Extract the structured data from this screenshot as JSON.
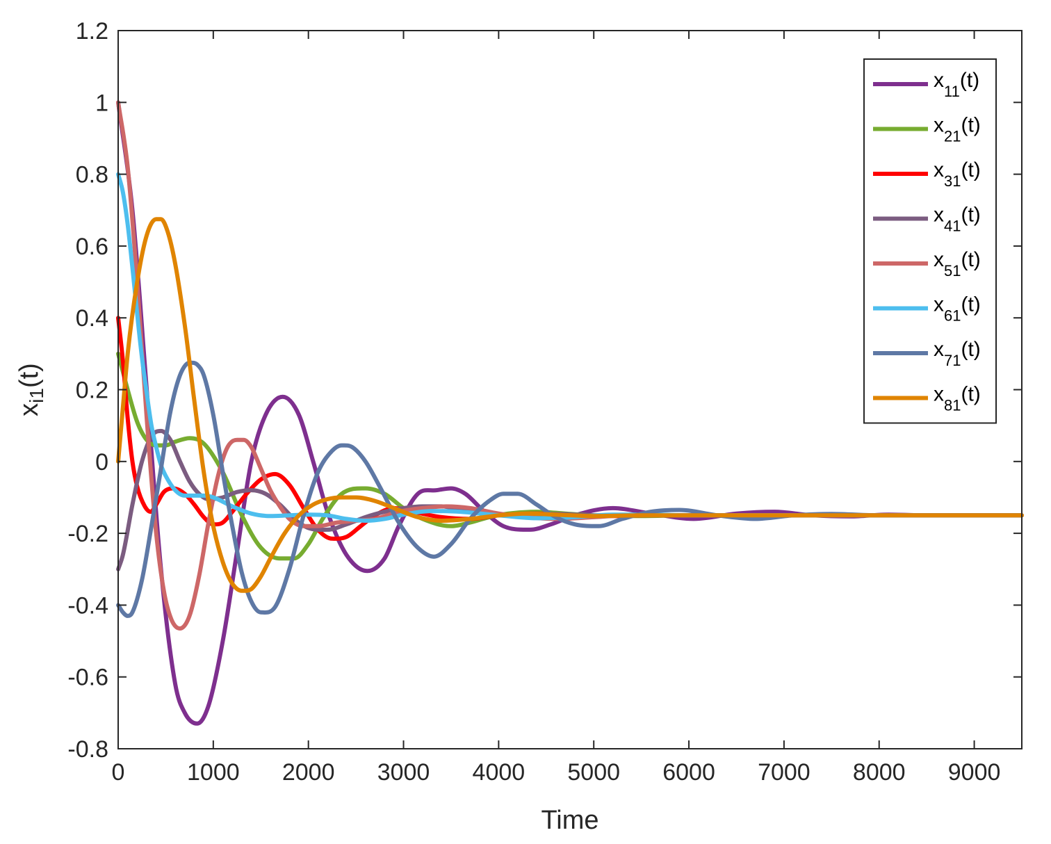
{
  "chart_data": {
    "type": "line",
    "xlabel": "Time",
    "ylabel": {
      "main": "x",
      "sub": "i1",
      "suffix": "(t)"
    },
    "xlim": [
      0,
      9500
    ],
    "ylim": [
      -0.8,
      1.2
    ],
    "xticks": [
      0,
      1000,
      2000,
      3000,
      4000,
      5000,
      6000,
      7000,
      8000,
      9000
    ],
    "xtick_labels": [
      "0",
      "1000",
      "2000",
      "3000",
      "4000",
      "5000",
      "6000",
      "7000",
      "8000",
      "9000"
    ],
    "yticks": [
      -0.8,
      -0.6,
      -0.4,
      -0.2,
      0,
      0.2,
      0.4,
      0.6,
      0.8,
      1,
      1.2
    ],
    "ytick_labels": [
      "-0.8",
      "-0.6",
      "-0.4",
      "-0.2",
      "0",
      "0.2",
      "0.4",
      "0.6",
      "0.8",
      "1",
      "1.2"
    ],
    "grid": false,
    "legend_position": "top-right",
    "series": [
      {
        "name": "x11(t)",
        "label_main": "x",
        "label_sub": "11",
        "label_suffix": "(t)",
        "color": "#7E2F8E",
        "x": [
          0,
          150,
          300,
          450,
          600,
          700,
          830,
          950,
          1100,
          1250,
          1400,
          1550,
          1730,
          1900,
          2050,
          2200,
          2400,
          2620,
          2800,
          2950,
          3150,
          3350,
          3500,
          3650,
          3850,
          4050,
          4330,
          4550,
          4800,
          5200,
          5600,
          6050,
          6500,
          6900,
          7300,
          7700,
          8100,
          8500,
          9000,
          9500
        ],
        "y": [
          1.0,
          0.7,
          0.2,
          -0.3,
          -0.62,
          -0.7,
          -0.73,
          -0.68,
          -0.5,
          -0.25,
          0.0,
          0.13,
          0.18,
          0.13,
          0.0,
          -0.14,
          -0.26,
          -0.305,
          -0.27,
          -0.18,
          -0.09,
          -0.08,
          -0.075,
          -0.09,
          -0.14,
          -0.18,
          -0.19,
          -0.175,
          -0.15,
          -0.13,
          -0.145,
          -0.16,
          -0.145,
          -0.14,
          -0.15,
          -0.153,
          -0.148,
          -0.15,
          -0.15,
          -0.15
        ]
      },
      {
        "name": "x21(t)",
        "label_main": "x",
        "label_sub": "21",
        "label_suffix": "(t)",
        "color": "#77AC30",
        "x": [
          0,
          100,
          200,
          300,
          400,
          500,
          600,
          750,
          900,
          1100,
          1300,
          1500,
          1700,
          1850,
          2000,
          2150,
          2350,
          2600,
          2800,
          3000,
          3200,
          3500,
          3700,
          3900,
          4100,
          4400,
          4700,
          5000,
          5500,
          6000,
          6500,
          7000,
          7500,
          8000,
          8500,
          9000,
          9500
        ],
        "y": [
          0.3,
          0.2,
          0.11,
          0.06,
          0.045,
          0.045,
          0.055,
          0.065,
          0.05,
          -0.03,
          -0.15,
          -0.24,
          -0.27,
          -0.27,
          -0.23,
          -0.16,
          -0.09,
          -0.075,
          -0.09,
          -0.13,
          -0.16,
          -0.18,
          -0.17,
          -0.155,
          -0.145,
          -0.14,
          -0.145,
          -0.15,
          -0.152,
          -0.15,
          -0.15,
          -0.15,
          -0.15,
          -0.15,
          -0.15,
          -0.15,
          -0.15
        ]
      },
      {
        "name": "x31(t)",
        "label_main": "x",
        "label_sub": "31",
        "label_suffix": "(t)",
        "color": "#FF0000",
        "x": [
          0,
          50,
          100,
          150,
          200,
          280,
          340,
          400,
          480,
          580,
          700,
          800,
          900,
          1000,
          1100,
          1200,
          1350,
          1500,
          1650,
          1800,
          1950,
          2100,
          2250,
          2400,
          2550,
          2700,
          2900,
          3100,
          3400,
          3700,
          4000,
          4400,
          4800,
          5200,
          5600,
          6000,
          6500,
          7000,
          7500,
          8000,
          8500,
          9000,
          9500
        ],
        "y": [
          0.4,
          0.28,
          0.12,
          0.0,
          -0.07,
          -0.125,
          -0.14,
          -0.12,
          -0.085,
          -0.075,
          -0.09,
          -0.12,
          -0.155,
          -0.175,
          -0.17,
          -0.14,
          -0.09,
          -0.05,
          -0.035,
          -0.065,
          -0.13,
          -0.19,
          -0.215,
          -0.21,
          -0.18,
          -0.15,
          -0.13,
          -0.14,
          -0.155,
          -0.16,
          -0.15,
          -0.145,
          -0.15,
          -0.152,
          -0.15,
          -0.15,
          -0.15,
          -0.15,
          -0.15,
          -0.15,
          -0.15,
          -0.15,
          -0.15
        ]
      },
      {
        "name": "x41(t)",
        "label_main": "x",
        "label_sub": "41",
        "label_suffix": "(t)",
        "color": "#7B5C80",
        "x": [
          0,
          50,
          150,
          250,
          350,
          450,
          550,
          650,
          750,
          850,
          950,
          1100,
          1250,
          1400,
          1550,
          1700,
          1850,
          2000,
          2200,
          2400,
          2600,
          2800,
          3000,
          3200,
          3400,
          3600,
          3800,
          4000,
          4300,
          4600,
          5000,
          5500,
          6000,
          6500,
          7000,
          7500,
          8000,
          8500,
          9000,
          9500
        ],
        "y": [
          -0.3,
          -0.26,
          -0.12,
          0.0,
          0.07,
          0.085,
          0.06,
          0.0,
          -0.055,
          -0.09,
          -0.105,
          -0.1,
          -0.085,
          -0.08,
          -0.09,
          -0.12,
          -0.16,
          -0.185,
          -0.19,
          -0.175,
          -0.155,
          -0.14,
          -0.13,
          -0.125,
          -0.125,
          -0.135,
          -0.145,
          -0.15,
          -0.148,
          -0.146,
          -0.15,
          -0.15,
          -0.15,
          -0.15,
          -0.15,
          -0.15,
          -0.15,
          -0.15,
          -0.15,
          -0.15
        ]
      },
      {
        "name": "x51(t)",
        "label_main": "x",
        "label_sub": "51",
        "label_suffix": "(t)",
        "color": "#CD6767",
        "x": [
          0,
          100,
          200,
          300,
          400,
          480,
          560,
          650,
          750,
          850,
          950,
          1050,
          1150,
          1250,
          1320,
          1400,
          1500,
          1600,
          1700,
          1800,
          1950,
          2100,
          2300,
          2500,
          2700,
          2950,
          3200,
          3450,
          3700,
          4000,
          4300,
          4600,
          5000,
          5500,
          6000,
          6500,
          7000,
          7500,
          8000,
          8500,
          9000,
          9500
        ],
        "y": [
          1.0,
          0.82,
          0.5,
          0.12,
          -0.2,
          -0.36,
          -0.44,
          -0.465,
          -0.43,
          -0.32,
          -0.17,
          -0.04,
          0.04,
          0.06,
          0.06,
          0.04,
          -0.02,
          -0.08,
          -0.125,
          -0.16,
          -0.18,
          -0.18,
          -0.17,
          -0.165,
          -0.16,
          -0.14,
          -0.13,
          -0.125,
          -0.13,
          -0.145,
          -0.155,
          -0.16,
          -0.155,
          -0.148,
          -0.15,
          -0.15,
          -0.15,
          -0.15,
          -0.15,
          -0.15,
          -0.15,
          -0.15
        ]
      },
      {
        "name": "x61(t)",
        "label_main": "x",
        "label_sub": "61",
        "label_suffix": "(t)",
        "color": "#4DBEEE",
        "x": [
          0,
          50,
          100,
          150,
          200,
          250,
          300,
          350,
          400,
          450,
          500,
          600,
          700,
          800,
          900,
          1000,
          1200,
          1400,
          1600,
          1800,
          2000,
          2200,
          2400,
          2600,
          2800,
          3000,
          3300,
          3600,
          4000,
          4400,
          4800,
          5200,
          5600,
          6000,
          6500,
          7000,
          7500,
          8000,
          8500,
          9000,
          9500
        ],
        "y": [
          0.8,
          0.75,
          0.66,
          0.54,
          0.41,
          0.29,
          0.19,
          0.1,
          0.04,
          -0.01,
          -0.04,
          -0.08,
          -0.095,
          -0.095,
          -0.095,
          -0.1,
          -0.125,
          -0.145,
          -0.152,
          -0.15,
          -0.148,
          -0.15,
          -0.16,
          -0.165,
          -0.16,
          -0.148,
          -0.138,
          -0.14,
          -0.15,
          -0.158,
          -0.155,
          -0.148,
          -0.148,
          -0.15,
          -0.15,
          -0.15,
          -0.15,
          -0.15,
          -0.15,
          -0.15,
          -0.15
        ]
      },
      {
        "name": "x71(t)",
        "label_main": "x",
        "label_sub": "71",
        "label_suffix": "(t)",
        "color": "#5E78A5",
        "x": [
          0,
          50,
          100,
          150,
          250,
          350,
          450,
          550,
          650,
          750,
          830,
          900,
          1000,
          1100,
          1200,
          1300,
          1400,
          1500,
          1650,
          1800,
          1950,
          2100,
          2250,
          2350,
          2460,
          2600,
          2750,
          2950,
          3150,
          3320,
          3500,
          3700,
          3900,
          4050,
          4200,
          4400,
          4600,
          4800,
          5050,
          5300,
          5600,
          5900,
          6300,
          6700,
          7100,
          7500,
          8000,
          8500,
          9000,
          9500
        ],
        "y": [
          -0.4,
          -0.42,
          -0.43,
          -0.42,
          -0.33,
          -0.18,
          -0.02,
          0.14,
          0.24,
          0.275,
          0.27,
          0.24,
          0.13,
          -0.03,
          -0.18,
          -0.31,
          -0.39,
          -0.42,
          -0.405,
          -0.3,
          -0.15,
          -0.03,
          0.03,
          0.045,
          0.04,
          0.0,
          -0.07,
          -0.17,
          -0.24,
          -0.265,
          -0.23,
          -0.16,
          -0.11,
          -0.09,
          -0.09,
          -0.12,
          -0.155,
          -0.175,
          -0.18,
          -0.16,
          -0.14,
          -0.135,
          -0.15,
          -0.16,
          -0.15,
          -0.146,
          -0.15,
          -0.15,
          -0.15,
          -0.15
        ]
      },
      {
        "name": "x81(t)",
        "label_main": "x",
        "label_sub": "81",
        "label_suffix": "(t)",
        "color": "#E08400",
        "x": [
          0,
          50,
          100,
          200,
          300,
          400,
          450,
          520,
          600,
          700,
          800,
          900,
          1000,
          1100,
          1200,
          1300,
          1400,
          1500,
          1600,
          1750,
          1900,
          2050,
          2200,
          2350,
          2500,
          2700,
          2900,
          3150,
          3400,
          3700,
          4000,
          4300,
          4600,
          5000,
          5500,
          6000,
          6500,
          7000,
          7500,
          8000,
          8500,
          9000,
          9500
        ],
        "y": [
          0.0,
          0.15,
          0.3,
          0.5,
          0.63,
          0.675,
          0.675,
          0.64,
          0.55,
          0.38,
          0.17,
          -0.03,
          -0.18,
          -0.28,
          -0.34,
          -0.36,
          -0.355,
          -0.32,
          -0.27,
          -0.2,
          -0.15,
          -0.12,
          -0.105,
          -0.1,
          -0.1,
          -0.11,
          -0.13,
          -0.155,
          -0.165,
          -0.16,
          -0.15,
          -0.145,
          -0.148,
          -0.152,
          -0.15,
          -0.15,
          -0.15,
          -0.15,
          -0.15,
          -0.15,
          -0.15,
          -0.15,
          -0.15
        ]
      }
    ]
  }
}
